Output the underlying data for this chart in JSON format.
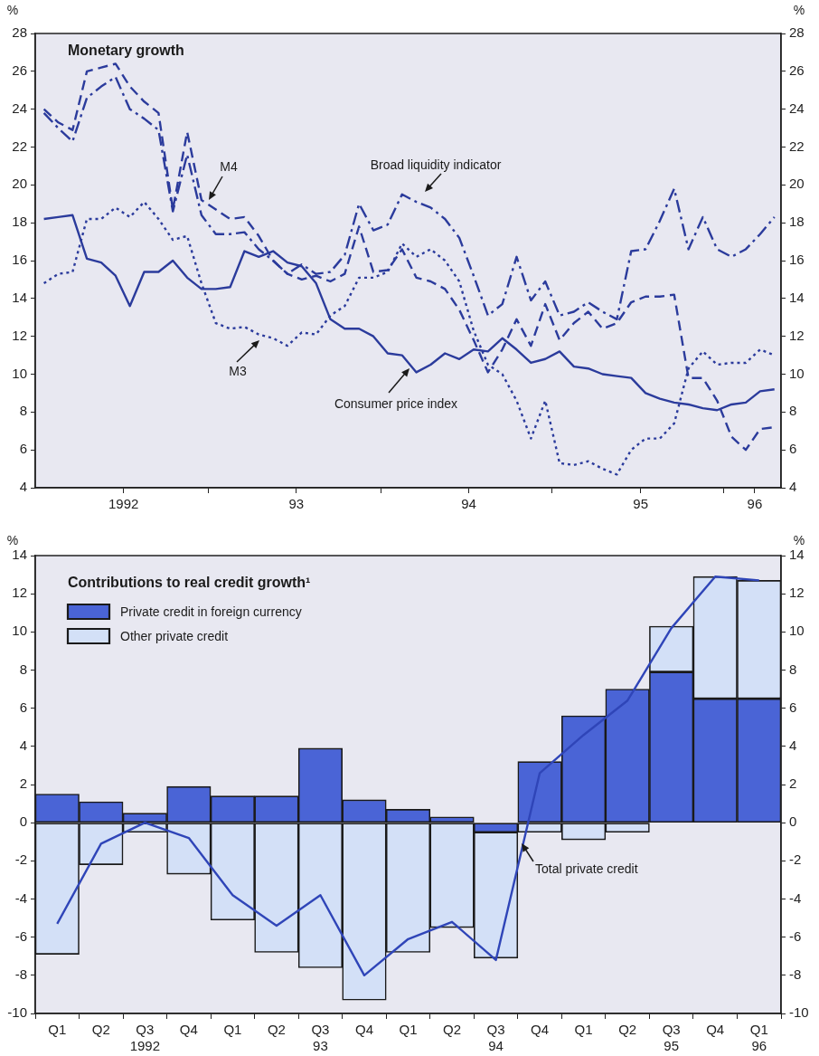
{
  "chart_data": [
    {
      "type": "line",
      "title": "Monetary growth",
      "ylabel": "%",
      "y2label": "%",
      "grid": false,
      "legend": false,
      "x": [
        "1992-01",
        "1992-02",
        "1992-03",
        "1992-04",
        "1992-05",
        "1992-06",
        "1992-07",
        "1992-08",
        "1992-09",
        "1992-10",
        "1992-11",
        "1992-12",
        "1993-01",
        "1993-02",
        "1993-03",
        "1993-04",
        "1993-05",
        "1993-06",
        "1993-07",
        "1993-08",
        "1993-09",
        "1993-10",
        "1993-11",
        "1993-12",
        "1994-01",
        "1994-02",
        "1994-03",
        "1994-04",
        "1994-05",
        "1994-06",
        "1994-07",
        "1994-08",
        "1994-09",
        "1994-10",
        "1994-11",
        "1994-12",
        "1995-01",
        "1995-02",
        "1995-03",
        "1995-04",
        "1995-05",
        "1995-06",
        "1995-07",
        "1995-08",
        "1995-09",
        "1995-10",
        "1995-11",
        "1995-12",
        "1996-01",
        "1996-02",
        "1996-03",
        "1996-04"
      ],
      "series": [
        {
          "name": "M4",
          "color": "#2b3b9c",
          "line_style": "dashed",
          "values": [
            24.0,
            23.3,
            22.9,
            26.0,
            26.2,
            26.4,
            25.2,
            24.4,
            23.8,
            18.7,
            22.8,
            19.2,
            18.7,
            18.2,
            18.3,
            17.3,
            16.0,
            15.3,
            15.0,
            15.2,
            14.9,
            15.3,
            17.8,
            15.4,
            15.5,
            16.6,
            15.1,
            14.9,
            14.5,
            13.4,
            11.8,
            10.1,
            11.3,
            12.9,
            11.5,
            13.7,
            11.8,
            12.7,
            13.3,
            12.4,
            12.7,
            13.8,
            14.1,
            14.1,
            14.2,
            9.8,
            9.8,
            8.6,
            6.7,
            6.0,
            7.1,
            7.2
          ]
        },
        {
          "name": "Broad liquidity indicator",
          "color": "#2b3b9c",
          "line_style": "dashdot",
          "values": [
            23.8,
            23.0,
            22.3,
            24.6,
            25.2,
            25.7,
            24.0,
            23.5,
            22.9,
            18.6,
            21.6,
            18.4,
            17.4,
            17.4,
            17.5,
            16.6,
            16.0,
            15.3,
            15.8,
            15.3,
            15.4,
            16.3,
            19.0,
            17.6,
            17.9,
            19.5,
            19.1,
            18.8,
            18.2,
            17.2,
            15.2,
            13.1,
            13.7,
            16.2,
            13.9,
            14.9,
            13.1,
            13.3,
            13.8,
            13.3,
            12.9,
            16.5,
            16.6,
            18.1,
            19.8,
            16.6,
            18.3,
            16.6,
            16.2,
            16.6,
            17.4,
            18.3
          ]
        },
        {
          "name": "M3",
          "color": "#2b3b9c",
          "line_style": "dotted",
          "values": [
            14.8,
            15.3,
            15.4,
            18.2,
            18.2,
            18.8,
            18.3,
            19.1,
            18.2,
            17.1,
            17.3,
            14.8,
            12.7,
            12.4,
            12.5,
            12.1,
            11.9,
            11.5,
            12.2,
            12.1,
            13.1,
            13.6,
            15.1,
            15.1,
            15.4,
            16.9,
            16.2,
            16.6,
            16.0,
            14.9,
            12.3,
            10.5,
            10.0,
            8.6,
            6.6,
            8.6,
            5.3,
            5.2,
            5.4,
            5.0,
            4.7,
            6.0,
            6.6,
            6.6,
            7.4,
            10.3,
            11.2,
            10.5,
            10.6,
            10.6,
            11.3,
            11.0
          ]
        },
        {
          "name": "Consumer price index",
          "color": "#2b3b9c",
          "line_style": "solid",
          "values": [
            18.2,
            18.3,
            18.4,
            16.1,
            15.9,
            15.2,
            13.6,
            15.4,
            15.4,
            16.0,
            15.1,
            14.5,
            14.5,
            14.6,
            16.5,
            16.2,
            16.5,
            15.9,
            15.7,
            14.8,
            12.9,
            12.4,
            12.4,
            12.0,
            11.1,
            11.0,
            10.1,
            10.5,
            11.1,
            10.8,
            11.3,
            11.2,
            11.9,
            11.3,
            10.6,
            10.8,
            11.2,
            10.4,
            10.3,
            10.0,
            9.9,
            9.8,
            9.0,
            8.7,
            8.5,
            8.4,
            8.2,
            8.1,
            8.4,
            8.5,
            9.1,
            9.2
          ]
        }
      ],
      "xlim": [
        "1991-12-13",
        "1996-04-15"
      ],
      "xticks": [
        {
          "value": "1992-06-18",
          "label": "1992"
        },
        {
          "value": "1992-12-15",
          "label": null
        },
        {
          "value": "1993-06-20",
          "label": "93"
        },
        {
          "value": "1993-12-18",
          "label": null
        },
        {
          "value": "1994-06-21",
          "label": "94"
        },
        {
          "value": "1994-12-16",
          "label": null
        },
        {
          "value": "1995-06-21",
          "label": "95"
        },
        {
          "value": "1995-12-15",
          "label": null
        },
        {
          "value": "1996-02-20",
          "label": "96"
        }
      ],
      "ylim": [
        4,
        28
      ],
      "yticks": [
        4,
        6,
        8,
        10,
        12,
        14,
        16,
        18,
        20,
        22,
        24,
        26,
        28
      ],
      "y2lim": [
        4,
        28
      ],
      "y2ticks": [
        4,
        6,
        8,
        10,
        12,
        14,
        16,
        18,
        20,
        22,
        24,
        26,
        28
      ]
    },
    {
      "type": "bar",
      "stacked": true,
      "title": "Contributions to real credit growth¹",
      "ylabel": "%",
      "y2label": "%",
      "grid": false,
      "legend": "top left",
      "categories": [
        "Q1",
        "Q2",
        "Q3\n1992",
        "Q4",
        "Q1",
        "Q2",
        "Q3\n93",
        "Q4",
        "Q1",
        "Q2",
        "Q3\n94",
        "Q4",
        "Q1",
        "Q2",
        "Q3\n95",
        "Q4",
        "Q1\n96"
      ],
      "series": [
        {
          "name": "Private credit in foreign currency",
          "color": "#4a64d6",
          "values": [
            1.5,
            1.1,
            0.5,
            1.9,
            1.4,
            1.4,
            3.9,
            1.2,
            0.7,
            0.3,
            -0.5,
            3.2,
            5.6,
            7.0,
            7.9,
            6.5,
            6.5
          ]
        },
        {
          "name": "Other private credit",
          "color": "#d3e0f7",
          "values": [
            -6.9,
            -2.2,
            -0.5,
            -2.7,
            -5.1,
            -6.8,
            -7.6,
            -9.3,
            -6.8,
            -5.5,
            -6.6,
            -0.5,
            -0.9,
            -0.5,
            2.4,
            6.4,
            6.2
          ]
        },
        {
          "name": "Total private credit",
          "type": "line",
          "color": "#2f45b8",
          "values": [
            -5.3,
            -1.1,
            0,
            -0.8,
            -3.8,
            -5.4,
            -3.8,
            -8.0,
            -6.1,
            -5.2,
            -7.2,
            2.6,
            4.6,
            6.4,
            10.2,
            12.9,
            12.7
          ]
        }
      ],
      "ylim": [
        -10,
        14
      ],
      "yticks": [
        -10,
        -8,
        -6,
        -4,
        -2,
        0,
        2,
        4,
        6,
        8,
        10,
        12,
        14
      ],
      "y2lim": [
        -10,
        14
      ],
      "y2ticks": [
        -10,
        -8,
        -6,
        -4,
        -2,
        0,
        2,
        4,
        6,
        8,
        10,
        12,
        14
      ]
    }
  ]
}
